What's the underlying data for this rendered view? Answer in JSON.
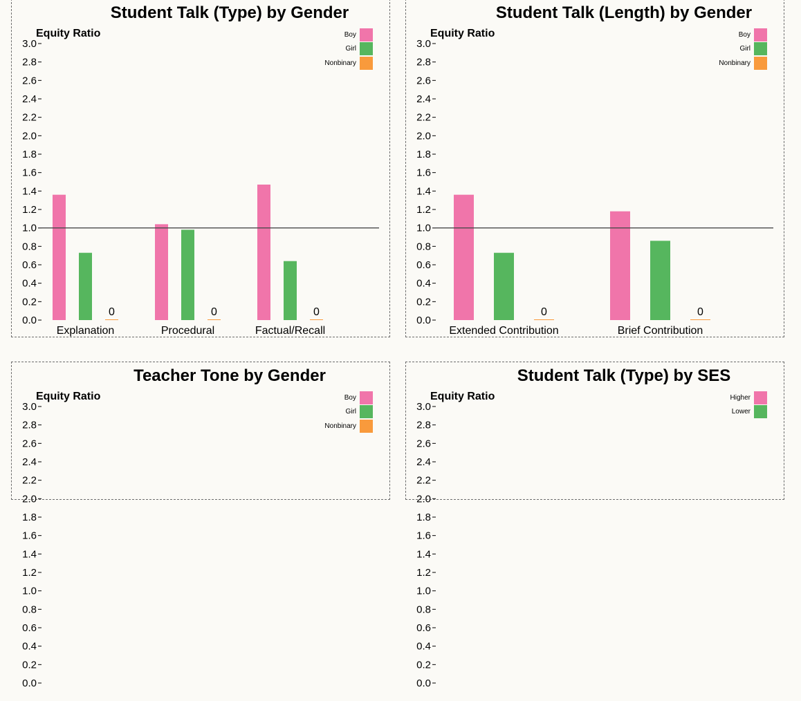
{
  "colors": {
    "boy": "#f075aa",
    "girl": "#56b65e",
    "nonbinary": "#f99a3c",
    "higher": "#f075aa",
    "lower": "#56b65e"
  },
  "chart_data": [
    {
      "type": "bar",
      "title": "Student Talk (Type) by Gender",
      "ylabel": "Equity Ratio",
      "ylim": [
        0,
        3.0
      ],
      "yticks": [
        "0.0",
        "0.2",
        "0.4",
        "0.6",
        "0.8",
        "1.0",
        "1.2",
        "1.4",
        "1.6",
        "1.8",
        "2.0",
        "2.2",
        "2.4",
        "2.6",
        "2.8",
        "3.0"
      ],
      "reference_line": 1.0,
      "categories": [
        "Explanation",
        "Procedural",
        "Factual/Recall"
      ],
      "series": [
        {
          "name": "Boy",
          "color": "#f075aa",
          "values": [
            1.36,
            1.04,
            1.47
          ]
        },
        {
          "name": "Girl",
          "color": "#56b65e",
          "values": [
            0.73,
            0.98,
            0.64
          ]
        },
        {
          "name": "Nonbinary",
          "color": "#f99a3c",
          "values": [
            0,
            0,
            0
          ],
          "labels": [
            "0",
            "0",
            "0"
          ]
        }
      ],
      "legend": "top-right"
    },
    {
      "type": "bar",
      "title": "Student Talk (Length) by Gender",
      "ylabel": "Equity Ratio",
      "ylim": [
        0,
        3.0
      ],
      "yticks": [
        "0.0",
        "0.2",
        "0.4",
        "0.6",
        "0.8",
        "1.0",
        "1.2",
        "1.4",
        "1.6",
        "1.8",
        "2.0",
        "2.2",
        "2.4",
        "2.6",
        "2.8",
        "3.0"
      ],
      "reference_line": 1.0,
      "categories": [
        "Extended Contribution",
        "Brief Contribution"
      ],
      "series": [
        {
          "name": "Boy",
          "color": "#f075aa",
          "values": [
            1.36,
            1.18
          ]
        },
        {
          "name": "Girl",
          "color": "#56b65e",
          "values": [
            0.73,
            0.86
          ]
        },
        {
          "name": "Nonbinary",
          "color": "#f99a3c",
          "values": [
            0,
            0
          ],
          "labels": [
            "0",
            "0"
          ]
        }
      ],
      "legend": "top-right"
    },
    {
      "type": "bar",
      "title": "Teacher Tone by Gender",
      "ylabel": "Equity Ratio",
      "ylim": [
        0,
        3.0
      ],
      "yticks": [
        "0.0",
        "0.2",
        "0.4",
        "0.6",
        "0.8",
        "1.0",
        "1.2",
        "1.4",
        "1.6",
        "1.8",
        "2.0",
        "2.2",
        "2.4",
        "2.6",
        "2.8",
        "3.0"
      ],
      "categories": [],
      "series": [
        {
          "name": "Boy",
          "color": "#f075aa",
          "values": []
        },
        {
          "name": "Girl",
          "color": "#56b65e",
          "values": []
        },
        {
          "name": "Nonbinary",
          "color": "#f99a3c",
          "values": []
        }
      ],
      "legend": "top-right"
    },
    {
      "type": "bar",
      "title": "Student Talk (Type) by SES",
      "ylabel": "Equity Ratio",
      "ylim": [
        0,
        3.0
      ],
      "yticks": [
        "0.0",
        "0.2",
        "0.4",
        "0.6",
        "0.8",
        "1.0",
        "1.2",
        "1.4",
        "1.6",
        "1.8",
        "2.0",
        "2.2",
        "2.4",
        "2.6",
        "2.8",
        "3.0"
      ],
      "categories": [],
      "series": [
        {
          "name": "Higher",
          "color": "#f075aa",
          "values": []
        },
        {
          "name": "Lower",
          "color": "#56b65e",
          "values": []
        }
      ],
      "legend": "top-right"
    }
  ]
}
